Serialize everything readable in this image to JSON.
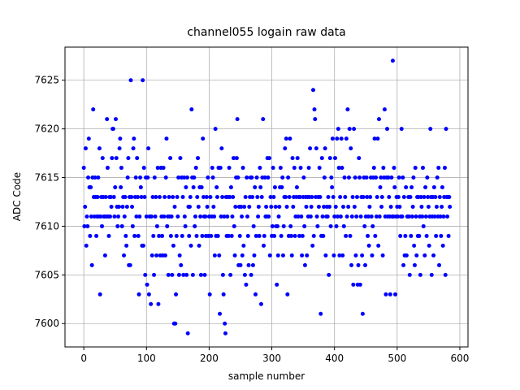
{
  "chart_data": {
    "type": "scatter",
    "title": "channel055 logain raw data",
    "xlabel": "sample number",
    "ylabel": "ADC Code",
    "color": "#0000ff",
    "grid": true,
    "xlim": [
      -30,
      613
    ],
    "ylim": [
      7597.6,
      7628.4
    ],
    "xticks": [
      0,
      100,
      200,
      300,
      400,
      500,
      600
    ],
    "yticks": [
      7600,
      7605,
      7610,
      7615,
      7620,
      7625
    ],
    "x": [
      0,
      1,
      2,
      3,
      4,
      5,
      6,
      7,
      8,
      9,
      10,
      11,
      12,
      13,
      14,
      15,
      16,
      17,
      18,
      19,
      20,
      21,
      22,
      23,
      24,
      25,
      26,
      27,
      28,
      29,
      30,
      31,
      32,
      33,
      34,
      35,
      36,
      37,
      38,
      39,
      40,
      41,
      42,
      43,
      44,
      45,
      46,
      47,
      48,
      49,
      50,
      51,
      52,
      53,
      54,
      55,
      56,
      57,
      58,
      59,
      60,
      61,
      62,
      63,
      64,
      65,
      66,
      67,
      68,
      69,
      70,
      71,
      72,
      73,
      74,
      75,
      76,
      77,
      78,
      79,
      80,
      81,
      82,
      83,
      84,
      85,
      86,
      87,
      88,
      89,
      90,
      91,
      92,
      93,
      94,
      95,
      96,
      97,
      98,
      99,
      100,
      101,
      102,
      103,
      104,
      105,
      106,
      107,
      108,
      109,
      110,
      111,
      112,
      113,
      114,
      115,
      116,
      117,
      118,
      119,
      120,
      121,
      122,
      123,
      124,
      125,
      126,
      127,
      128,
      129,
      130,
      131,
      132,
      133,
      134,
      135,
      136,
      137,
      138,
      139,
      140,
      141,
      142,
      143,
      144,
      145,
      146,
      147,
      148,
      149,
      150,
      151,
      152,
      153,
      154,
      155,
      156,
      157,
      158,
      159,
      160,
      161,
      162,
      163,
      164,
      165,
      166,
      167,
      168,
      169,
      170,
      171,
      172,
      173,
      174,
      175,
      176,
      177,
      178,
      179,
      180,
      181,
      182,
      183,
      184,
      185,
      186,
      187,
      188,
      189,
      190,
      191,
      192,
      193,
      194,
      195,
      196,
      197,
      198,
      199,
      200,
      201,
      202,
      203,
      204,
      205,
      206,
      207,
      208,
      209,
      210,
      211,
      212,
      213,
      214,
      215,
      216,
      217,
      218,
      219,
      220,
      221,
      222,
      223,
      224,
      225,
      226,
      227,
      228,
      229,
      230,
      231,
      232,
      233,
      234,
      235,
      236,
      237,
      238,
      239,
      240,
      241,
      242,
      243,
      244,
      245,
      246,
      247,
      248,
      249,
      250,
      251,
      252,
      253,
      254,
      255,
      256,
      257,
      258,
      259,
      260,
      261,
      262,
      263,
      264,
      265,
      266,
      267,
      268,
      269,
      270,
      271,
      272,
      273,
      274,
      275,
      276,
      277,
      278,
      279,
      280,
      281,
      282,
      283,
      284,
      285,
      286,
      287,
      288,
      289,
      290,
      291,
      292,
      293,
      294,
      295,
      296,
      297,
      298,
      299,
      300,
      301,
      302,
      303,
      304,
      305,
      306,
      307,
      308,
      309,
      310,
      311,
      312,
      313,
      314,
      315,
      316,
      317,
      318,
      319,
      320,
      321,
      322,
      323,
      324,
      325,
      326,
      327,
      328,
      329,
      330,
      331,
      332,
      333,
      334,
      335,
      336,
      337,
      338,
      339,
      340,
      341,
      342,
      343,
      344,
      345,
      346,
      347,
      348,
      349,
      350,
      351,
      352,
      353,
      354,
      355,
      356,
      357,
      358,
      359,
      360,
      361,
      362,
      363,
      364,
      365,
      366,
      367,
      368,
      369,
      370,
      371,
      372,
      373,
      374,
      375,
      376,
      377,
      378,
      379,
      380,
      381,
      382,
      383,
      384,
      385,
      386,
      387,
      388,
      389,
      390,
      391,
      392,
      393,
      394,
      395,
      396,
      397,
      398,
      399,
      400,
      401,
      402,
      403,
      404,
      405,
      406,
      407,
      408,
      409,
      410,
      411,
      412,
      413,
      414,
      415,
      416,
      417,
      418,
      419,
      420,
      421,
      422,
      423,
      424,
      425,
      426,
      427,
      428,
      429,
      430,
      431,
      432,
      433,
      434,
      435,
      436,
      437,
      438,
      439,
      440,
      441,
      442,
      443,
      444,
      445,
      446,
      447,
      448,
      449,
      450,
      451,
      452,
      453,
      454,
      455,
      456,
      457,
      458,
      459,
      460,
      461,
      462,
      463,
      464,
      465,
      466,
      467,
      468,
      469,
      470,
      471,
      472,
      473,
      474,
      475,
      476,
      477,
      478,
      479,
      480,
      481,
      482,
      483,
      484,
      485,
      486,
      487,
      488,
      489,
      490,
      491,
      492,
      493,
      494,
      495,
      496,
      497,
      498,
      499,
      500,
      501,
      502,
      503,
      504,
      505,
      506,
      507,
      508,
      509,
      510,
      511,
      512,
      513,
      514,
      515,
      516,
      517,
      518,
      519,
      520,
      521,
      522,
      523,
      524,
      525,
      526,
      527,
      528,
      529,
      530,
      531,
      532,
      533,
      534,
      535,
      536,
      537,
      538,
      539,
      540,
      541,
      542,
      543,
      544,
      545,
      546,
      547,
      548,
      549,
      550,
      551,
      552,
      553,
      554,
      555,
      556,
      557,
      558,
      559,
      560,
      561,
      562,
      563,
      564,
      565,
      566,
      567,
      568,
      569,
      570,
      571,
      572,
      573,
      574,
      575,
      576,
      577,
      578,
      579,
      580,
      581,
      582,
      583,
      584
    ],
    "values": [
      7616,
      7610,
      7612,
      7618,
      7608,
      7611,
      7610,
      7615,
      7619,
      7614,
      7609,
      7614,
      7611,
      7606,
      7615,
      7622,
      7613,
      7611,
      7615,
      7613,
      7609,
      7611,
      7613,
      7615,
      7611,
      7618,
      7603,
      7611,
      7613,
      7610,
      7617,
      7613,
      7611,
      7611,
      7607,
      7613,
      7611,
      7621,
      7616,
      7611,
      7609,
      7613,
      7611,
      7613,
      7612,
      7617,
      7620,
      7620,
      7613,
      7611,
      7614,
      7621,
      7617,
      7612,
      7610,
      7611,
      7612,
      7618,
      7619,
      7614,
      7616,
      7610,
      7612,
      7613,
      7607,
      7611,
      7613,
      7609,
      7608,
      7612,
      7615,
      7617,
      7606,
      7613,
      7606,
      7625,
      7613,
      7612,
      7610,
      7618,
      7619,
      7609,
      7613,
      7615,
      7611,
      7617,
      7613,
      7609,
      7603,
      7611,
      7615,
      7614,
      7613,
      7608,
      7625,
      7608,
      7616,
      7613,
      7605,
      7615,
      7611,
      7604,
      7615,
      7618,
      7603,
      7611,
      7611,
      7602,
      7611,
      7607,
      7613,
      7609,
      7605,
      7615,
      7611,
      7613,
      7607,
      7610,
      7616,
      7602,
      7609,
      7613,
      7607,
      7616,
      7611,
      7609,
      7607,
      7616,
      7611,
      7613,
      7607,
      7615,
      7619,
      7610,
      7611,
      7605,
      7613,
      7611,
      7617,
      7609,
      7611,
      7605,
      7613,
      7608,
      7600,
      7612,
      7600,
      7603,
      7609,
      7613,
      7611,
      7615,
      7605,
      7607,
      7617,
      7606,
      7615,
      7609,
      7613,
      7605,
      7615,
      7611,
      7610,
      7614,
      7605,
      7615,
      7599,
      7612,
      7609,
      7612,
      7613,
      7608,
      7622,
      7615,
      7605,
      7614,
      7615,
      7610,
      7611,
      7616,
      7609,
      7613,
      7617,
      7612,
      7608,
      7614,
      7611,
      7605,
      7614,
      7609,
      7619,
      7613,
      7611,
      7605,
      7611,
      7609,
      7613,
      7612,
      7615,
      7609,
      7611,
      7603,
      7613,
      7609,
      7611,
      7616,
      7615,
      7612,
      7611,
      7607,
      7620,
      7609,
      7614,
      7613,
      7609,
      7616,
      7607,
      7601,
      7616,
      7611,
      7618,
      7613,
      7605,
      7603,
      7611,
      7600,
      7599,
      7613,
      7609,
      7611,
      7613,
      7609,
      7616,
      7613,
      7605,
      7614,
      7609,
      7611,
      7613,
      7617,
      7610,
      7607,
      7612,
      7615,
      7617,
      7621,
      7615,
      7606,
      7612,
      7609,
      7606,
      7612,
      7611,
      7607,
      7616,
      7608,
      7612,
      7605,
      7613,
      7604,
      7615,
      7611,
      7609,
      7606,
      7612,
      7613,
      7615,
      7605,
      7615,
      7613,
      7606,
      7610,
      7607,
      7614,
      7603,
      7609,
      7615,
      7613,
      7611,
      7612,
      7609,
      7616,
      7614,
      7602,
      7613,
      7615,
      7621,
      7608,
      7609,
      7615,
      7611,
      7612,
      7611,
      7617,
      7615,
      7611,
      7617,
      7607,
      7613,
      7612,
      7609,
      7610,
      7616,
      7613,
      7609,
      7614,
      7612,
      7610,
      7604,
      7610,
      7607,
      7611,
      7612,
      7614,
      7616,
      7609,
      7614,
      7615,
      7607,
      7610,
      7613,
      7618,
      7613,
      7619,
      7612,
      7603,
      7615,
      7609,
      7613,
      7619,
      7610,
      7609,
      7607,
      7617,
      7612,
      7613,
      7616,
      7609,
      7611,
      7613,
      7614,
      7617,
      7611,
      7613,
      7609,
      7613,
      7616,
      7611,
      7607,
      7609,
      7613,
      7615,
      7610,
      7606,
      7613,
      7612,
      7607,
      7613,
      7611,
      7616,
      7613,
      7618,
      7611,
      7612,
      7613,
      7608,
      7624,
      7609,
      7622,
      7621,
      7613,
      7618,
      7611,
      7610,
      7613,
      7612,
      7616,
      7613,
      7601,
      7609,
      7617,
      7611,
      7609,
      7612,
      7615,
      7618,
      7607,
      7611,
      7612,
      7611,
      7613,
      7605,
      7612,
      7617,
      7610,
      7615,
      7614,
      7619,
      7613,
      7607,
      7611,
      7617,
      7612,
      7610,
      7619,
      7611,
      7620,
      7616,
      7607,
      7613,
      7611,
      7619,
      7616,
      7607,
      7612,
      7610,
      7615,
      7613,
      7609,
      7619,
      7611,
      7622,
      7612,
      7615,
      7620,
      7609,
      7618,
      7606,
      7611,
      7613,
      7604,
      7620,
      7612,
      7615,
      7607,
      7611,
      7613,
      7604,
      7606,
      7617,
      7615,
      7604,
      7611,
      7613,
      7607,
      7601,
      7613,
      7615,
      7610,
      7606,
      7611,
      7615,
      7613,
      7609,
      7611,
      7608,
      7612,
      7613,
      7615,
      7611,
      7607,
      7610,
      7615,
      7616,
      7619,
      7609,
      7615,
      7611,
      7613,
      7619,
      7608,
      7621,
      7611,
      7614,
      7615,
      7612,
      7613,
      7607,
      7616,
      7615,
      7622,
      7611,
      7603,
      7615,
      7620,
      7611,
      7615,
      7613,
      7611,
      7603,
      7612,
      7615,
      7611,
      7627,
      7611,
      7616,
      7614,
      7603,
      7611,
      7613,
      7612,
      7611,
      7613,
      7615,
      7612,
      7609,
      7611,
      7620,
      7611,
      7615,
      7606,
      7613,
      7607,
      7609,
      7614,
      7607,
      7611,
      7611,
      7613,
      7611,
      7605,
      7613,
      7609,
      7614,
      7611,
      7612,
      7615,
      7608,
      7606,
      7616,
      7611,
      7607,
      7613,
      7609,
      7613,
      7609,
      7611,
      7605,
      7613,
      7612,
      7611,
      7616,
      7610,
      7613,
      7607,
      7614,
      7611,
      7609,
      7615,
      7613,
      7612,
      7608,
      7611,
      7620,
      7613,
      7605,
      7611,
      7613,
      7607,
      7614,
      7611,
      7613,
      7609,
      7612,
      7615,
      7611,
      7616,
      7606,
      7613,
      7611,
      7609,
      7612,
      7614,
      7608,
      7611,
      7613,
      7616,
      7605,
      7620,
      7613,
      7611,
      7613,
      7609,
      7613,
      7612
    ]
  }
}
